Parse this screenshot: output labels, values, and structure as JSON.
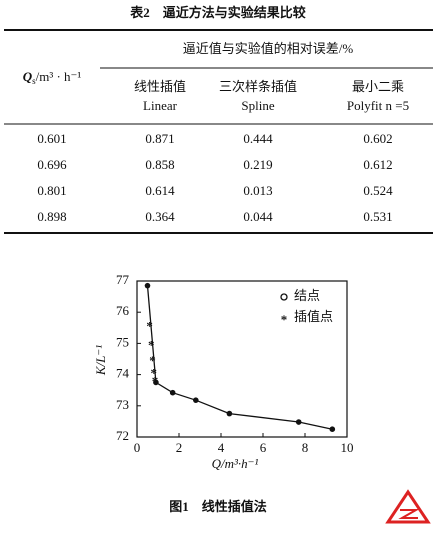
{
  "table": {
    "title": "表2　逼近方法与实验结果比较",
    "q_header": {
      "symbol": "Q",
      "subscript": "s",
      "unit": "/m³ · h⁻¹"
    },
    "group_header": "逼近值与实验值的相对误差/%",
    "columns": [
      {
        "cn": "线性插值",
        "en": "Linear"
      },
      {
        "cn": "三次样条插值",
        "en": "Spline"
      },
      {
        "cn": "最小二乘",
        "en": "Polyfit  n =5"
      }
    ],
    "rows": [
      [
        "0.601",
        "0.871",
        "0.444",
        "0.602"
      ],
      [
        "0.696",
        "0.858",
        "0.219",
        "0.612"
      ],
      [
        "0.801",
        "0.614",
        "0.013",
        "0.524"
      ],
      [
        "0.898",
        "0.364",
        "0.044",
        "0.531"
      ]
    ]
  },
  "chart_data": {
    "type": "scatter",
    "caption": "图1　线性插值法",
    "xlabel": "Q/m³·h⁻¹",
    "ylabel": "K/L⁻¹",
    "xlim": [
      0,
      10
    ],
    "ylim": [
      72,
      77
    ],
    "xticks": [
      0,
      2,
      4,
      6,
      8,
      10
    ],
    "yticks": [
      72,
      73,
      74,
      75,
      76,
      77
    ],
    "series": [
      {
        "name": "结点",
        "color": "#111111",
        "marker": "circle",
        "line": true,
        "x": [
          0.5,
          0.9,
          1.7,
          2.8,
          4.4,
          7.7,
          9.3
        ],
        "values": [
          76.85,
          73.75,
          73.42,
          73.18,
          72.75,
          72.48,
          72.25
        ]
      },
      {
        "name": "插值点",
        "color": "#111111",
        "marker": "star",
        "line": false,
        "x": [
          0.6,
          0.68,
          0.74,
          0.8,
          0.86
        ],
        "values": [
          75.6,
          75.0,
          74.5,
          74.1,
          73.85
        ]
      }
    ]
  }
}
